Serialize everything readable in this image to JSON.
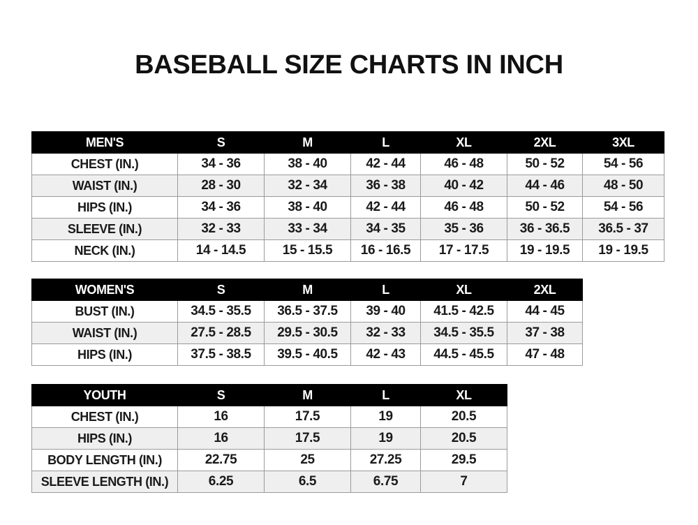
{
  "title": "BASEBALL SIZE CHARTS IN INCH",
  "tables": [
    {
      "header": [
        "MEN'S",
        "S",
        "M",
        "L",
        "XL",
        "2XL",
        "3XL"
      ],
      "rows": [
        [
          "CHEST (IN.)",
          "34 - 36",
          "38 - 40",
          "42 - 44",
          "46 - 48",
          "50 - 52",
          "54 - 56"
        ],
        [
          "WAIST (IN.)",
          "28 - 30",
          "32 - 34",
          "36 - 38",
          "40 - 42",
          "44 - 46",
          "48 - 50"
        ],
        [
          "HIPS (IN.)",
          "34 - 36",
          "38 - 40",
          "42 - 44",
          "46 - 48",
          "50 - 52",
          "54 - 56"
        ],
        [
          "SLEEVE (IN.)",
          "32 - 33",
          "33 - 34",
          "34 - 35",
          "35 - 36",
          "36 - 36.5",
          "36.5 - 37"
        ],
        [
          "NECK (IN.)",
          "14 - 14.5",
          "15 - 15.5",
          "16 - 16.5",
          "17 - 17.5",
          "19 - 19.5",
          "19 - 19.5"
        ]
      ]
    },
    {
      "header": [
        "WOMEN'S",
        "S",
        "M",
        "L",
        "XL",
        "2XL"
      ],
      "rows": [
        [
          "BUST (IN.)",
          "34.5 - 35.5",
          "36.5 - 37.5",
          "39 - 40",
          "41.5 - 42.5",
          "44 - 45"
        ],
        [
          "WAIST (IN.)",
          "27.5 - 28.5",
          "29.5 - 30.5",
          "32 - 33",
          "34.5 - 35.5",
          "37 - 38"
        ],
        [
          "HIPS (IN.)",
          "37.5 - 38.5",
          "39.5 - 40.5",
          "42 - 43",
          "44.5 - 45.5",
          "47 - 48"
        ]
      ]
    },
    {
      "header": [
        "YOUTH",
        "S",
        "M",
        "L",
        "XL"
      ],
      "rows": [
        [
          "CHEST (IN.)",
          "16",
          "17.5",
          "19",
          "20.5"
        ],
        [
          "HIPS (IN.)",
          "16",
          "17.5",
          "19",
          "20.5"
        ],
        [
          "BODY LENGTH (IN.)",
          "22.75",
          "25",
          "27.25",
          "29.5"
        ],
        [
          "SLEEVE LENGTH (IN.)",
          "6.25",
          "6.5",
          "6.75",
          "7"
        ]
      ]
    }
  ]
}
